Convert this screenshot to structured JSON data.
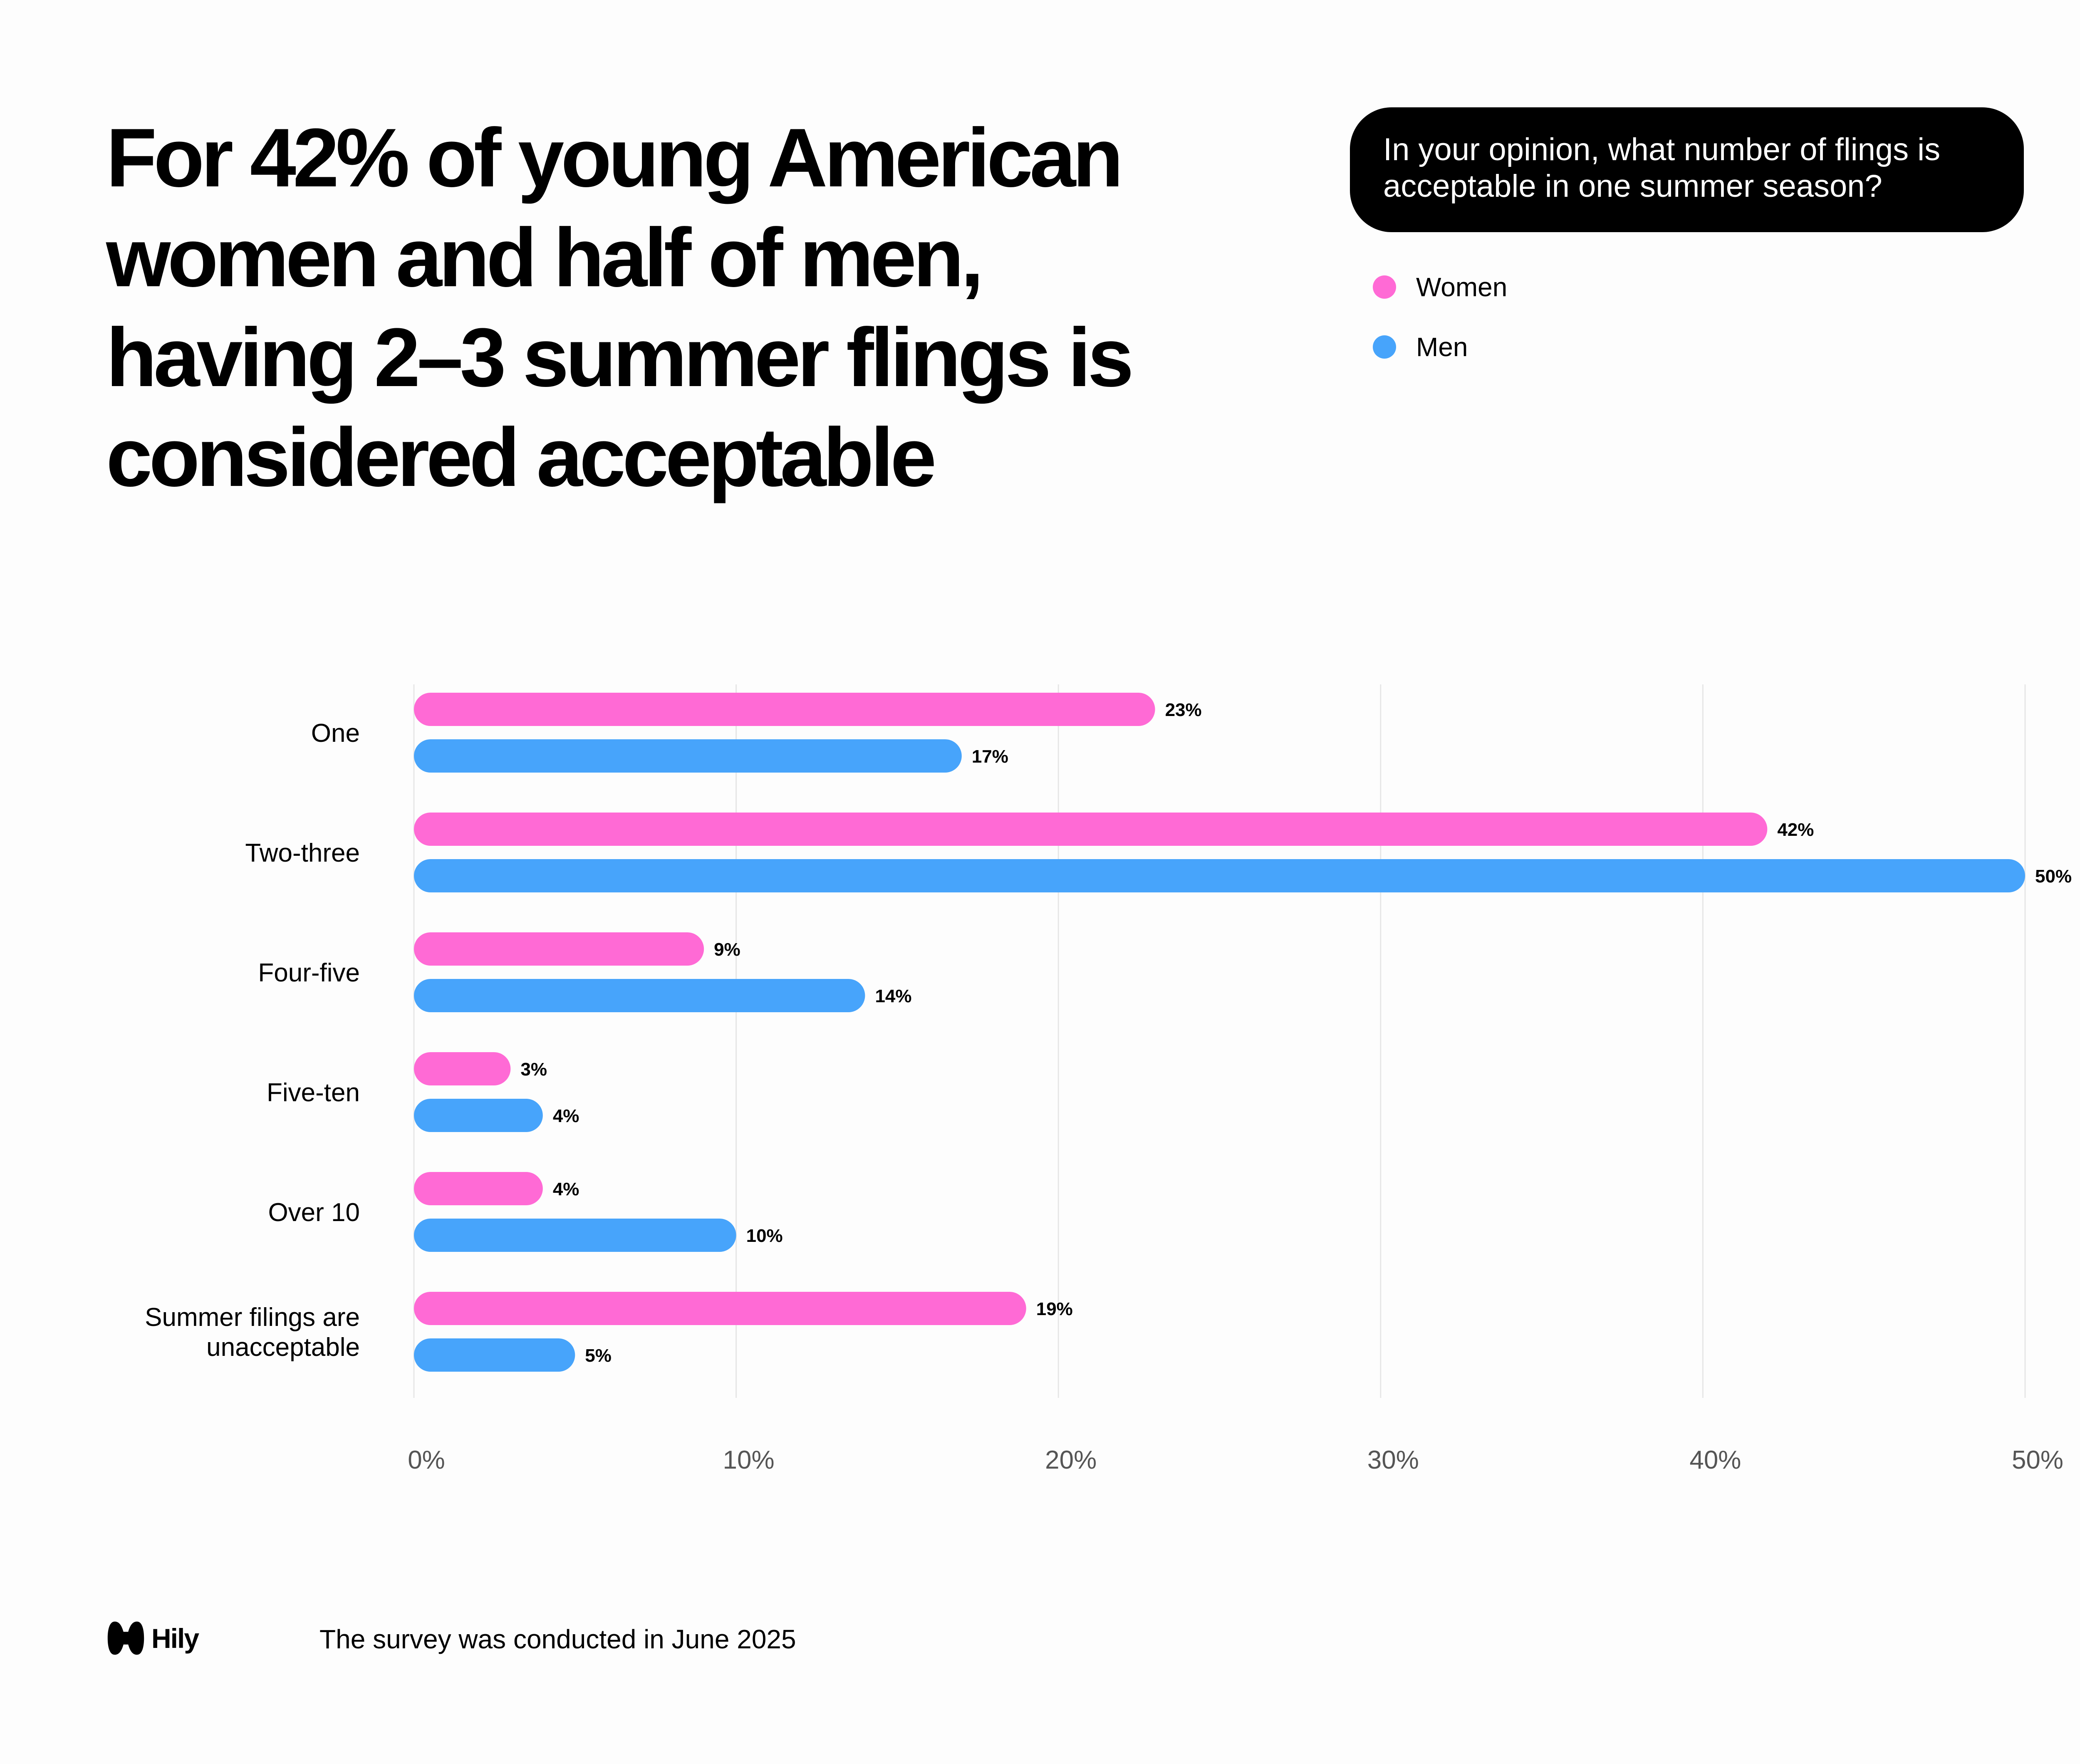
{
  "headline": "For 42% of young American women and half of men, having 2–3 summer flings is considered acceptable",
  "question": "In your opinion, what number of flings is acceptable in one summer season?",
  "legend": {
    "items": [
      {
        "label": "Women",
        "color": "#ff6ad5"
      },
      {
        "label": "Men",
        "color": "#47a4fb"
      }
    ]
  },
  "chart_data": {
    "type": "bar",
    "orientation": "horizontal",
    "title": "In your opinion, what number of flings is acceptable in one summer season?",
    "categories": [
      [
        "One"
      ],
      [
        "Two-three"
      ],
      [
        "Four-five"
      ],
      [
        "Five-ten"
      ],
      [
        "Over 10"
      ],
      [
        "Summer filings are",
        "unacceptable"
      ]
    ],
    "series": [
      {
        "name": "Women",
        "color": "#ff6ad5",
        "values": [
          23,
          42,
          9,
          3,
          4,
          19
        ],
        "labels": [
          "23%",
          "42%",
          "9%",
          "3%",
          "4%",
          "19%"
        ]
      },
      {
        "name": "Men",
        "color": "#47a4fb",
        "values": [
          17,
          50,
          14,
          4,
          10,
          5
        ],
        "labels": [
          "17%",
          "50%",
          "14%",
          "4%",
          "10%",
          "5%"
        ]
      }
    ],
    "xlim": [
      0,
      50
    ],
    "ticks": [
      0,
      10,
      20,
      30,
      40,
      50
    ],
    "tick_labels": [
      "0%",
      "10%",
      "20%",
      "30%",
      "40%",
      "50%"
    ],
    "xlabel": "",
    "ylabel": "",
    "grid": true,
    "legend_position": "top-right"
  },
  "footer": {
    "brand": "Hily",
    "note": "The survey was conducted in June 2025"
  }
}
